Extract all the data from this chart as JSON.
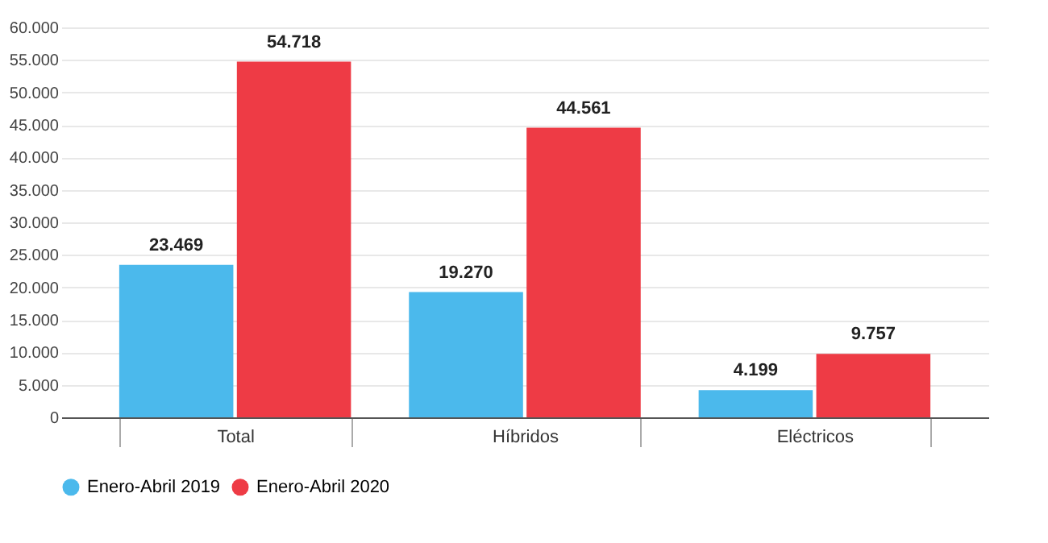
{
  "chart_data": {
    "type": "bar",
    "categories": [
      "Total",
      "Híbridos",
      "Eléctricos"
    ],
    "series": [
      {
        "name": "Enero-Abril 2019",
        "color": "#4bb9ec",
        "values": [
          23469,
          19270,
          4199
        ],
        "value_labels": [
          "23.469",
          "19.270",
          "4.199"
        ]
      },
      {
        "name": "Enero-Abril 2020",
        "color": "#ee3b45",
        "values": [
          54718,
          44561,
          9757
        ],
        "value_labels": [
          "54.718",
          "44.561",
          "9.757"
        ]
      }
    ],
    "ylim": [
      0,
      60000
    ],
    "yticks": [
      {
        "value": 0,
        "label": "0"
      },
      {
        "value": 5000,
        "label": "5.000"
      },
      {
        "value": 10000,
        "label": "10.000"
      },
      {
        "value": 15000,
        "label": "15.000"
      },
      {
        "value": 20000,
        "label": "20.000"
      },
      {
        "value": 25000,
        "label": "25.000"
      },
      {
        "value": 30000,
        "label": "30.000"
      },
      {
        "value": 35000,
        "label": "35.000"
      },
      {
        "value": 40000,
        "label": "40.000"
      },
      {
        "value": 45000,
        "label": "45.000"
      },
      {
        "value": 50000,
        "label": "50.000"
      },
      {
        "value": 55000,
        "label": "55.000"
      },
      {
        "value": 60000,
        "label": "60.000"
      }
    ],
    "grid": "y",
    "legend": "bottom"
  }
}
